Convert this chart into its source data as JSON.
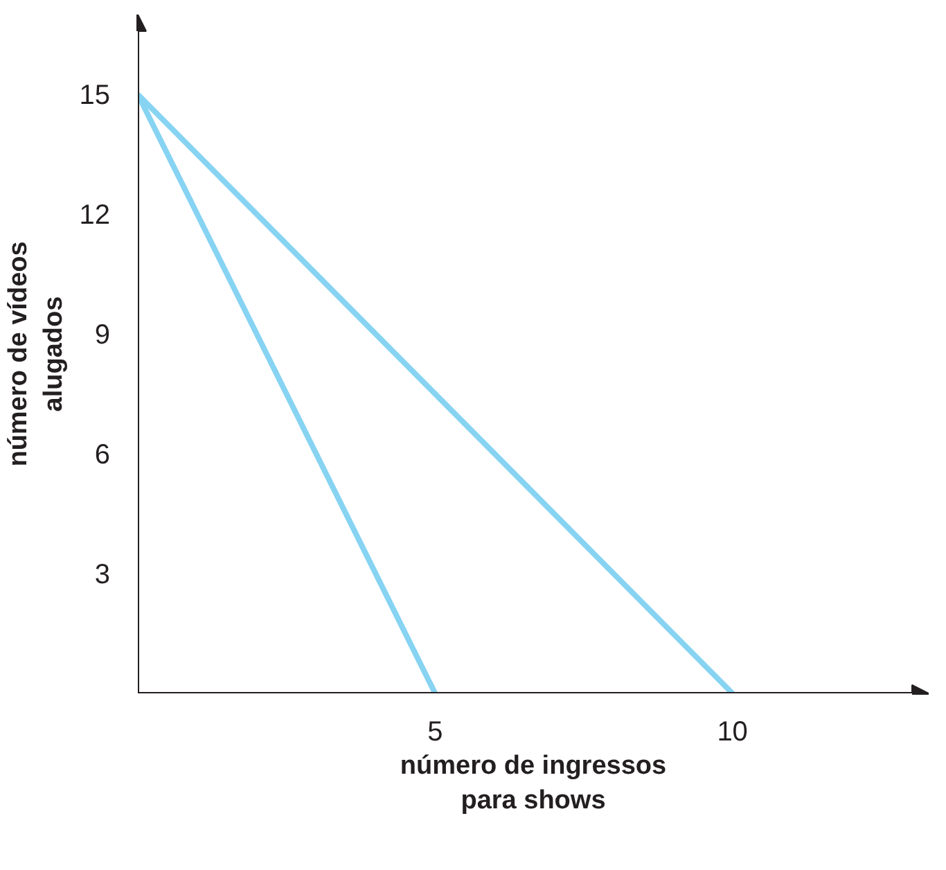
{
  "chart_data": {
    "type": "line",
    "xlabel": "número de ingressos para shows",
    "ylabel": "número de vídeos alugados",
    "xlim": [
      0,
      13.3
    ],
    "ylim": [
      0,
      17
    ],
    "xticks": [
      5,
      10
    ],
    "yticks": [
      3,
      6,
      9,
      12,
      15
    ],
    "grid": false,
    "series": [
      {
        "color": "#87d3f2",
        "x": [
          0,
          5
        ],
        "values": [
          15,
          0
        ]
      },
      {
        "color": "#87d3f2",
        "x": [
          0,
          10
        ],
        "values": [
          15,
          0
        ]
      }
    ]
  }
}
